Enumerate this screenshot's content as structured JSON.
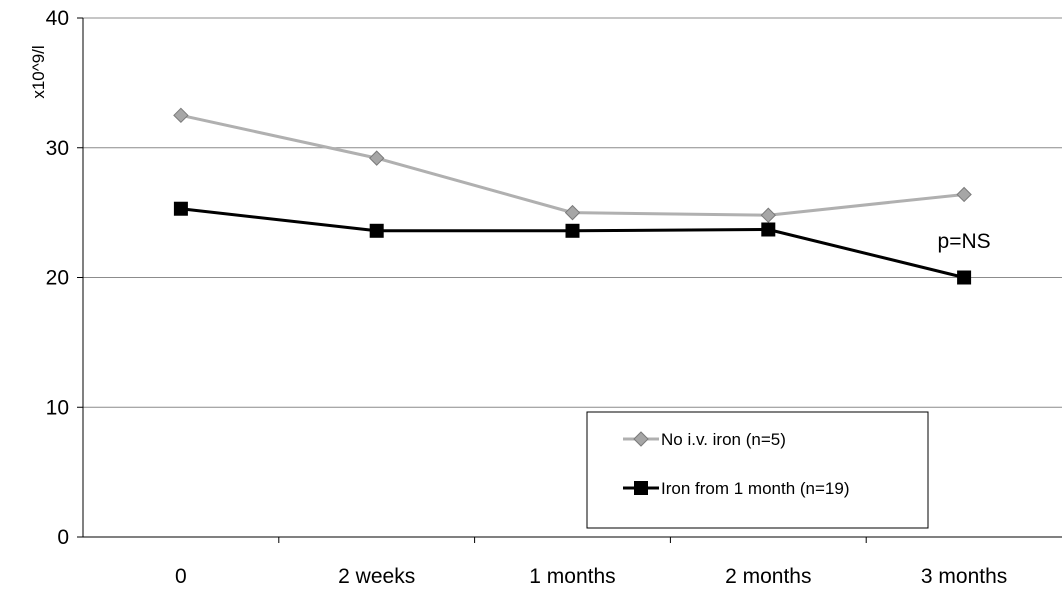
{
  "chart_data": {
    "type": "line",
    "ylabel": "x10^9/l",
    "xlabel": "",
    "title": "",
    "categories": [
      "0",
      "2 weeks",
      "1 months",
      "2 months",
      "3 months"
    ],
    "ylim": [
      0,
      40
    ],
    "yticks": [
      0,
      10,
      20,
      30,
      40
    ],
    "grid": true,
    "legend_position": "bottom-right",
    "series": [
      {
        "name": "No i.v. iron (n=5)",
        "values": [
          32.5,
          29.2,
          25.0,
          24.8,
          26.4
        ],
        "color": "#b0b0b0",
        "marker_color": "#a6a6a6",
        "marker": "diamond"
      },
      {
        "name": "Iron from 1 month (n=19)",
        "values": [
          25.3,
          23.6,
          23.6,
          23.7,
          20.0
        ],
        "color": "#000000",
        "marker_color": "#000000",
        "marker": "square"
      }
    ],
    "annotations": [
      {
        "text": "p=NS",
        "category_index": 4,
        "y": 22.8
      }
    ]
  }
}
